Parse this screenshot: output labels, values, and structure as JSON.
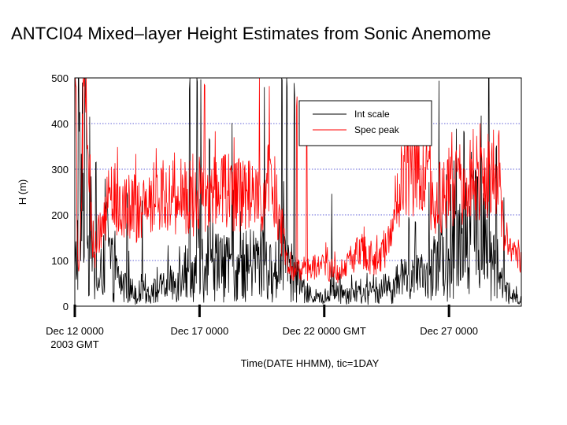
{
  "chart_data": {
    "type": "line",
    "title": "ANTCI04 Mixed–layer Height Estimates from Sonic Anemome",
    "xlabel": "Time(DATE HHMM), tic=1DAY",
    "ylabel": "H (m)",
    "xlim": [
      0,
      17.9
    ],
    "ylim": [
      0,
      500
    ],
    "x_unit": "days since Dec 12 0000 2003 GMT",
    "x_ticks": [
      {
        "x": 0,
        "lines": [
          "Dec 12 0000",
          "2003 GMT"
        ]
      },
      {
        "x": 5,
        "lines": [
          "Dec 17 0000"
        ]
      },
      {
        "x": 10,
        "lines": [
          "Dec 22 0000 GMT"
        ]
      },
      {
        "x": 15,
        "lines": [
          "Dec 27 0000"
        ]
      }
    ],
    "y_ticks": [
      0,
      100,
      200,
      300,
      400,
      500
    ],
    "grid": "horizontal dotted",
    "legend_position": "top-right",
    "series": [
      {
        "name": "Int scale",
        "color": "#000000",
        "anchors": [
          [
            0.0,
            60
          ],
          [
            0.1,
            140
          ],
          [
            0.2,
            300
          ],
          [
            0.3,
            120
          ],
          [
            0.4,
            400
          ],
          [
            0.5,
            100
          ],
          [
            0.6,
            180
          ],
          [
            0.8,
            60
          ],
          [
            1.0,
            40
          ],
          [
            1.2,
            150
          ],
          [
            1.5,
            80
          ],
          [
            2.0,
            40
          ],
          [
            2.5,
            30
          ],
          [
            3.0,
            30
          ],
          [
            3.5,
            40
          ],
          [
            4.0,
            50
          ],
          [
            4.3,
            100
          ],
          [
            4.6,
            60
          ],
          [
            4.9,
            80
          ],
          [
            5.0,
            150
          ],
          [
            5.2,
            60
          ],
          [
            5.6,
            100
          ],
          [
            6.0,
            80
          ],
          [
            6.5,
            80
          ],
          [
            7.0,
            90
          ],
          [
            7.5,
            100
          ],
          [
            8.0,
            60
          ],
          [
            8.3,
            150
          ],
          [
            8.6,
            80
          ],
          [
            8.9,
            60
          ],
          [
            9.2,
            30
          ],
          [
            9.6,
            20
          ],
          [
            10.0,
            15
          ],
          [
            10.5,
            30
          ],
          [
            11.0,
            30
          ],
          [
            11.5,
            25
          ],
          [
            12.0,
            30
          ],
          [
            12.5,
            40
          ],
          [
            13.0,
            50
          ],
          [
            13.5,
            60
          ],
          [
            14.0,
            60
          ],
          [
            14.5,
            80
          ],
          [
            15.0,
            100
          ],
          [
            15.5,
            160
          ],
          [
            16.0,
            180
          ],
          [
            16.5,
            120
          ],
          [
            17.0,
            60
          ],
          [
            17.4,
            30
          ],
          [
            17.7,
            15
          ],
          [
            17.9,
            15
          ]
        ],
        "spikes": [
          [
            0.15,
            500
          ],
          [
            0.3,
            500
          ],
          [
            0.45,
            470
          ],
          [
            0.6,
            420
          ],
          [
            0.85,
            330
          ],
          [
            1.3,
            220
          ],
          [
            2.1,
            250
          ],
          [
            2.7,
            230
          ],
          [
            4.6,
            500
          ],
          [
            4.9,
            500
          ],
          [
            5.05,
            500
          ],
          [
            5.4,
            370
          ],
          [
            6.3,
            400
          ],
          [
            7.6,
            500
          ],
          [
            8.3,
            500
          ],
          [
            8.5,
            500
          ],
          [
            8.8,
            480
          ],
          [
            10.3,
            250
          ],
          [
            13.4,
            190
          ],
          [
            14.2,
            260
          ],
          [
            14.6,
            500
          ],
          [
            15.6,
            380
          ],
          [
            16.6,
            500
          ],
          [
            16.9,
            350
          ],
          [
            17.2,
            250
          ]
        ]
      },
      {
        "name": "Spec peak",
        "color": "#ff0000",
        "anchors": [
          [
            0.0,
            500
          ],
          [
            0.15,
            40
          ],
          [
            0.3,
            400
          ],
          [
            0.45,
            500
          ],
          [
            0.55,
            330
          ],
          [
            0.7,
            150
          ],
          [
            0.8,
            120
          ],
          [
            1.0,
            160
          ],
          [
            1.3,
            220
          ],
          [
            1.6,
            240
          ],
          [
            2.0,
            230
          ],
          [
            2.5,
            210
          ],
          [
            3.0,
            230
          ],
          [
            3.5,
            250
          ],
          [
            4.0,
            240
          ],
          [
            4.5,
            240
          ],
          [
            4.8,
            230
          ],
          [
            5.1,
            270
          ],
          [
            5.3,
            210
          ],
          [
            5.6,
            260
          ],
          [
            6.0,
            270
          ],
          [
            6.5,
            240
          ],
          [
            7.0,
            240
          ],
          [
            7.5,
            220
          ],
          [
            7.8,
            280
          ],
          [
            8.1,
            230
          ],
          [
            8.4,
            130
          ],
          [
            8.7,
            70
          ],
          [
            9.0,
            80
          ],
          [
            9.5,
            85
          ],
          [
            10.0,
            90
          ],
          [
            10.5,
            70
          ],
          [
            11.0,
            100
          ],
          [
            11.5,
            120
          ],
          [
            12.0,
            100
          ],
          [
            12.5,
            130
          ],
          [
            12.8,
            200
          ],
          [
            13.2,
            300
          ],
          [
            13.6,
            290
          ],
          [
            14.0,
            270
          ],
          [
            14.5,
            230
          ],
          [
            15.0,
            260
          ],
          [
            15.5,
            270
          ],
          [
            16.0,
            280
          ],
          [
            16.5,
            290
          ],
          [
            17.0,
            300
          ],
          [
            17.1,
            200
          ],
          [
            17.3,
            120
          ],
          [
            17.6,
            110
          ],
          [
            17.9,
            110
          ]
        ],
        "spikes": [
          [
            0.05,
            500
          ],
          [
            0.35,
            500
          ],
          [
            1.4,
            270
          ],
          [
            4.0,
            350
          ],
          [
            5.2,
            500
          ],
          [
            6.0,
            330
          ],
          [
            7.4,
            500
          ],
          [
            7.8,
            500
          ],
          [
            8.9,
            440
          ],
          [
            9.3,
            380
          ],
          [
            13.1,
            340
          ],
          [
            13.6,
            330
          ],
          [
            15.1,
            330
          ],
          [
            16.3,
            340
          ],
          [
            17.0,
            370
          ]
        ]
      }
    ]
  }
}
